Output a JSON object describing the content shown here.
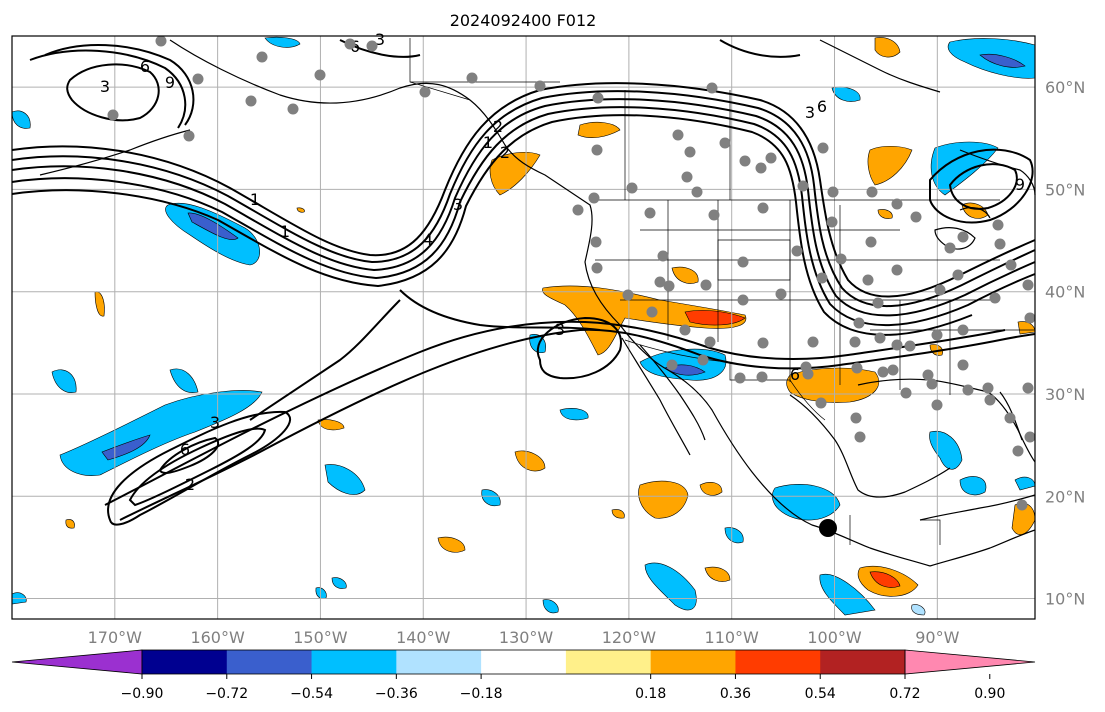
{
  "title": "2024092400 F012",
  "map": {
    "lon_labels": [
      "170°W",
      "160°W",
      "150°W",
      "140°W",
      "130°W",
      "120°W",
      "110°W",
      "100°W",
      "90°W"
    ],
    "lon_values": [
      -170,
      -160,
      -150,
      -140,
      -130,
      -120,
      -110,
      -100,
      -90
    ],
    "lat_labels": [
      "60°N",
      "50°N",
      "40°N",
      "30°N",
      "20°N",
      "10°N"
    ],
    "lat_values": [
      60,
      50,
      40,
      30,
      20,
      10
    ],
    "extent": {
      "lon_min": -180,
      "lon_max": -80.5,
      "lat_min": 8,
      "lat_max": 65
    },
    "grid": true,
    "contour_labels": [
      "3",
      "6",
      "9",
      "6",
      "3",
      "2",
      "1",
      "2",
      "3",
      "4",
      "3",
      "2",
      "6",
      "3",
      "1",
      "1",
      "6",
      "9",
      "3",
      "6"
    ]
  },
  "colorbar": {
    "tick_labels": [
      "−0.90",
      "−0.72",
      "−0.54",
      "−0.36",
      "−0.18",
      "0.18",
      "0.36",
      "0.54",
      "0.72",
      "0.90"
    ],
    "colors": [
      "#9b30d0",
      "#000090",
      "#3a5fcd",
      "#00bfff",
      "#b0e2ff",
      "#ffffff",
      "#fff08a",
      "#ffa500",
      "#ff3c00",
      "#b22222",
      "#ff88b0"
    ]
  }
}
